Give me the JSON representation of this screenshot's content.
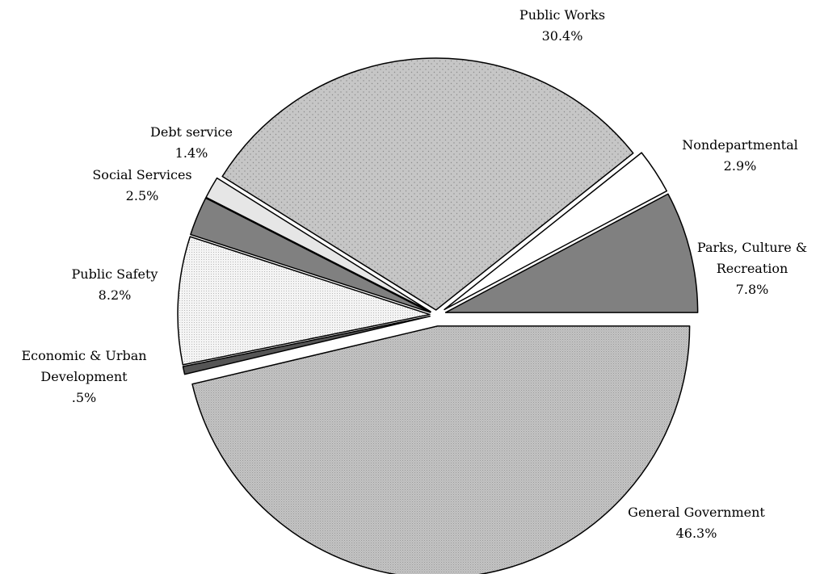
{
  "chart_data": {
    "type": "pie",
    "title": "",
    "slices": [
      {
        "label": [
          "General Government"
        ],
        "pct_label": "46.3%",
        "value": 46.3,
        "fill": "url(#pat-general)"
      },
      {
        "label": [
          "Economic & Urban",
          "Development"
        ],
        "pct_label": ".5%",
        "value": 0.5,
        "fill": "#555555"
      },
      {
        "label": [
          "Public Safety"
        ],
        "pct_label": "8.2%",
        "value": 8.2,
        "fill": "url(#pat-safety)"
      },
      {
        "label": [
          "Social Services"
        ],
        "pct_label": "2.5%",
        "value": 2.5,
        "fill": "#808080"
      },
      {
        "label": [
          "Debt service"
        ],
        "pct_label": "1.4%",
        "value": 1.4,
        "fill": "#e6e6e6"
      },
      {
        "label": [
          "Public Works"
        ],
        "pct_label": "30.4%",
        "value": 30.4,
        "fill": "url(#pat-works)"
      },
      {
        "label": [
          "Nondepartmental"
        ],
        "pct_label": "2.9%",
        "value": 2.9,
        "fill": "#ffffff"
      },
      {
        "label": [
          "Parks, Culture &",
          "Recreation"
        ],
        "pct_label": "7.8%",
        "value": 7.8,
        "fill": "#808080"
      }
    ]
  }
}
